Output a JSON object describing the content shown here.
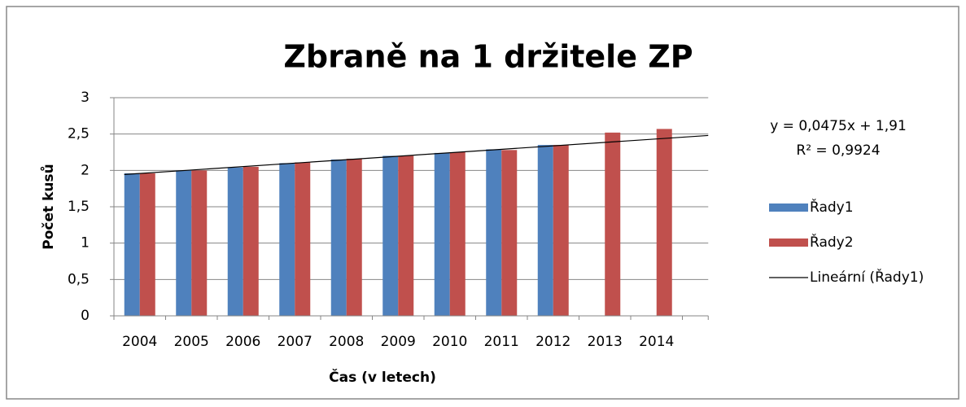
{
  "chart_data": {
    "type": "bar",
    "title": "Zbraně na 1 držitele ZP",
    "x_label": "Čas (v letech)",
    "y_label": "Počet kusů",
    "categories": [
      "2004",
      "2005",
      "2006",
      "2007",
      "2008",
      "2009",
      "2010",
      "2011",
      "2012",
      "2013",
      "2014"
    ],
    "series": [
      {
        "name": "Řady1",
        "color": "#4f81bd",
        "values": [
          1.96,
          2.0,
          2.04,
          2.1,
          2.15,
          2.2,
          2.24,
          2.29,
          2.35,
          null,
          null
        ]
      },
      {
        "name": "Řady2",
        "color": "#c0504d",
        "values": [
          1.96,
          2.0,
          2.05,
          2.11,
          2.16,
          2.2,
          2.25,
          2.28,
          2.35,
          2.52,
          2.57
        ]
      }
    ],
    "trendline": {
      "name": "Lineární (Řady1)",
      "color": "#000000",
      "slope": 0.0475,
      "intercept": 1.91,
      "equation": "y = 0,0475x + 1,91",
      "r2": "R² = 0,9924"
    },
    "ylim": [
      0,
      3
    ],
    "yticks": [
      0,
      {
        "value": 0.5,
        "label": "0,5"
      },
      1,
      {
        "value": 1.5,
        "label": "1,5"
      },
      2,
      {
        "value": 2.5,
        "label": "2,5"
      },
      3
    ],
    "grid": true,
    "legend": "right"
  }
}
